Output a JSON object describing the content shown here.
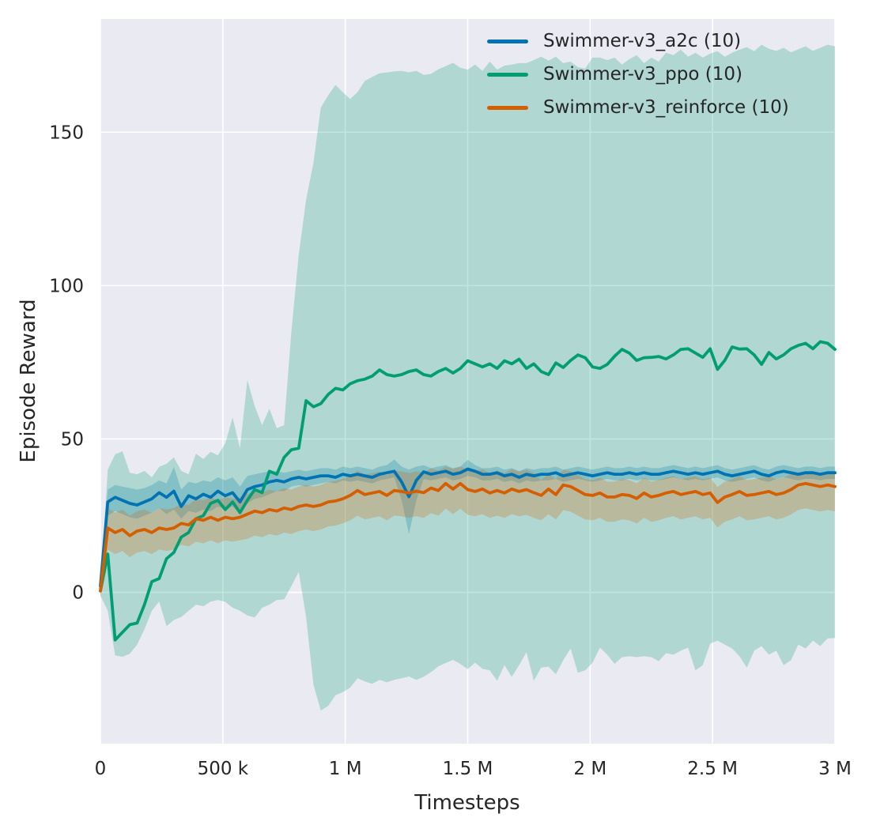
{
  "chart_data": {
    "type": "line",
    "title": "",
    "xlabel": "Timesteps",
    "ylabel": "Episode Reward",
    "xlim": [
      0,
      3000000
    ],
    "ylim": [
      -49.3,
      186.9
    ],
    "grid": true,
    "legend_position": "upper-right-inside",
    "background": "#eaeaf2",
    "grid_color": "#ffffff",
    "text_color": "#262626",
    "band_alpha": 0.25,
    "x_ticks": [
      {
        "v": 0,
        "label": "0"
      },
      {
        "v": 500000,
        "label": "500 k"
      },
      {
        "v": 1000000,
        "label": "1 M"
      },
      {
        "v": 1500000,
        "label": "1.5 M"
      },
      {
        "v": 2000000,
        "label": "2 M"
      },
      {
        "v": 2500000,
        "label": "2.5 M"
      },
      {
        "v": 3000000,
        "label": "3 M"
      }
    ],
    "y_ticks": [
      {
        "v": 0,
        "label": "0"
      },
      {
        "v": 50,
        "label": "50"
      },
      {
        "v": 100,
        "label": "100"
      },
      {
        "v": 150,
        "label": "150"
      }
    ],
    "x": {
      "start": 0,
      "step": 30000,
      "count": 101,
      "unit": "timesteps"
    },
    "series": [
      {
        "name": "a2c",
        "label": "Swimmer-v3_a2c (10)",
        "color": "#0173b2",
        "mean": [
          2,
          29.5,
          31,
          30,
          29,
          28.5,
          29.5,
          30.5,
          32.5,
          31,
          33,
          28,
          31.5,
          30.5,
          32,
          31,
          33,
          31.5,
          32.5,
          29.5,
          33.5,
          34.5,
          35,
          36,
          36.5,
          36,
          37,
          37.5,
          37,
          37.5,
          38,
          38,
          37.5,
          38.5,
          38,
          38.5,
          38,
          37.5,
          38.5,
          39,
          39.5,
          36,
          31.2,
          36.5,
          39.3,
          38.5,
          39,
          39.5,
          38.5,
          39,
          40.2,
          39.5,
          38.5,
          38.5,
          39,
          38,
          38.5,
          37.5,
          38.5,
          38,
          38.5,
          38.5,
          39,
          38,
          38.5,
          39,
          38.5,
          38,
          38.5,
          39,
          38.5,
          38.5,
          39,
          38.5,
          39,
          38.5,
          38.5,
          39,
          39.5,
          39,
          38.5,
          39,
          38.5,
          39,
          39.5,
          38.5,
          38,
          38.5,
          39,
          39.5,
          38.5,
          38,
          39,
          39.5,
          39,
          38.5,
          39,
          39,
          38.5,
          39,
          39
        ],
        "band_low": [
          0,
          25,
          26.5,
          25.5,
          24.5,
          24,
          25,
          26,
          27.5,
          25.5,
          27,
          24,
          26.5,
          26,
          27,
          26.5,
          28,
          27,
          28,
          25.5,
          29,
          30.5,
          31,
          32,
          33,
          33,
          34.5,
          35,
          34.5,
          35,
          35.5,
          36,
          35.5,
          36.5,
          36,
          36.5,
          36,
          35.5,
          36.5,
          37,
          37.5,
          30,
          19,
          30,
          37,
          36.5,
          37,
          37.5,
          36.5,
          37,
          38,
          37.5,
          36.5,
          36.5,
          37,
          36,
          36.5,
          35.5,
          36.5,
          36,
          36.5,
          36.5,
          37,
          36,
          36.5,
          37,
          36.5,
          36,
          36.5,
          37,
          36.5,
          36.5,
          37,
          36.5,
          37,
          36.5,
          36.5,
          37,
          37.5,
          37,
          36.5,
          37,
          36.5,
          37,
          37.5,
          36.5,
          36,
          36.5,
          37,
          37.5,
          36.5,
          36,
          37,
          37.5,
          37,
          36.5,
          37,
          37,
          36.5,
          37,
          37
        ],
        "band_high": [
          4,
          33.5,
          35,
          34.5,
          34,
          33.5,
          34,
          35,
          36.5,
          35.5,
          40.9,
          33.5,
          36,
          35.5,
          36.5,
          36,
          37.5,
          36.5,
          37.5,
          34.5,
          38,
          38.5,
          39,
          39.5,
          39.5,
          39,
          39.5,
          40,
          39.5,
          40,
          40.5,
          40.5,
          40,
          41,
          40.5,
          41,
          40.5,
          40,
          41,
          41.5,
          43.3,
          41,
          40,
          41,
          41.5,
          40.5,
          41,
          41.5,
          40.5,
          41,
          43.2,
          41.5,
          40.5,
          40.5,
          41,
          40,
          40.5,
          39.5,
          40.5,
          40,
          40.5,
          40.5,
          41,
          40,
          40.5,
          41,
          40.5,
          40,
          40.5,
          41,
          40.5,
          40.5,
          41,
          40.5,
          41,
          40.5,
          40.5,
          41,
          41.5,
          41,
          40.5,
          41,
          40.5,
          41,
          41.5,
          40.5,
          40,
          40.5,
          41,
          41.5,
          40.5,
          40,
          41,
          41.5,
          41,
          40.5,
          41,
          41,
          40.5,
          41,
          41
        ]
      },
      {
        "name": "ppo",
        "label": "Swimmer-v3_ppo (10)",
        "color": "#029e73",
        "mean": [
          0.5,
          12.5,
          -15.5,
          -13,
          -10.5,
          -10,
          -4,
          3.5,
          4.5,
          11,
          13,
          18,
          19.5,
          24,
          25,
          29,
          30,
          27,
          29.5,
          26,
          30,
          33.5,
          32.5,
          39.5,
          38.5,
          44,
          46.5,
          47,
          62.5,
          60.5,
          61.5,
          64.5,
          66.5,
          66,
          68,
          69,
          69.5,
          70.5,
          72.5,
          71,
          70.5,
          71,
          72,
          72.5,
          71,
          70.5,
          72,
          73,
          71.5,
          73,
          75.5,
          74.5,
          73.5,
          74.5,
          73,
          75.5,
          74.5,
          76,
          73,
          74.5,
          72,
          71,
          74.8,
          73.3,
          75.6,
          77.4,
          76.5,
          73.5,
          73,
          74.3,
          77,
          79.2,
          78,
          75.6,
          76.5,
          76.6,
          76.9,
          76.1,
          77.4,
          79.2,
          79.4,
          78,
          76.6,
          79.4,
          72.7,
          75.6,
          80,
          79.3,
          79.4,
          77.4,
          74.3,
          78.2,
          76.1,
          77.4,
          79.4,
          80.5,
          81.2,
          79.4,
          81.7,
          81.2,
          79.2
        ],
        "band_low": [
          -1,
          -6,
          -20.5,
          -21,
          -20,
          -17,
          -12,
          -6,
          -3,
          -11,
          -9,
          -8,
          -6,
          -4,
          -4.5,
          -3,
          -2.5,
          -3.1,
          -5,
          -6,
          -7.5,
          -8.2,
          -5,
          -4,
          -2.5,
          -2.3,
          2,
          6.7,
          -8,
          -30,
          -38.5,
          -37,
          -33.5,
          -32.5,
          -31,
          -28,
          -29,
          -29.8,
          -28.5,
          -29.3,
          -28.5,
          -28,
          -27.4,
          -28.5,
          -27.5,
          -26,
          -24.1,
          -23,
          -22,
          -23.3,
          -25,
          -22.9,
          -24.9,
          -25.4,
          -28.8,
          -23.7,
          -27.5,
          -23.7,
          -19.5,
          -28.8,
          -24.5,
          -24.2,
          -26.7,
          -22.1,
          -18.3,
          -26.2,
          -25.4,
          -22.9,
          -18,
          -20.3,
          -23.3,
          -21.1,
          -20.8,
          -21.1,
          -20.8,
          -21.1,
          -22.4,
          -19.8,
          -20.3,
          -19,
          -18,
          -25.4,
          -23.7,
          -16.7,
          -15.7,
          -17,
          -18.3,
          -20.8,
          -24.5,
          -19,
          -17.5,
          -20.3,
          -19,
          -23.7,
          -22.1,
          -17,
          -18.3,
          -15.7,
          -17.5,
          -15,
          -14.9
        ],
        "band_high": [
          2,
          40,
          45,
          46,
          39,
          38.5,
          39.6,
          37.5,
          40.9,
          41.9,
          44,
          39.6,
          38.5,
          45.2,
          43.5,
          45.8,
          44.7,
          48.6,
          57,
          47,
          69.2,
          60.7,
          54.5,
          59.9,
          53.5,
          54.5,
          85,
          110,
          128,
          140,
          158,
          162,
          165.4,
          163,
          160.8,
          163,
          166.7,
          168,
          169.2,
          169.5,
          169.8,
          170,
          169.5,
          170,
          168.7,
          169,
          170.5,
          171.5,
          172.6,
          171,
          170.4,
          172,
          170,
          173,
          170.4,
          171.7,
          172,
          172.5,
          172.5,
          173.5,
          174.6,
          173.3,
          174.6,
          172.5,
          173,
          171.2,
          170.7,
          174.3,
          174.3,
          173.5,
          174.3,
          172,
          173.8,
          175.1,
          172.5,
          174.3,
          173,
          175.9,
          175.1,
          176.9,
          174.6,
          175.9,
          174.3,
          175.6,
          176.4,
          174.6,
          175.9,
          176.9,
          177.7,
          176.4,
          178.5,
          177.2,
          176.5,
          177.5,
          176,
          177,
          178,
          176.5,
          177.5,
          178.5,
          178
        ]
      },
      {
        "name": "reinforce",
        "label": "Swimmer-v3_reinforce (10)",
        "color": "#d55e00",
        "mean": [
          0.5,
          21,
          19.5,
          20.5,
          18.5,
          20,
          20.5,
          19.5,
          21,
          20.5,
          21,
          22.5,
          22,
          24,
          23.5,
          24.5,
          23.5,
          24.5,
          24,
          24.5,
          25.5,
          26.5,
          26,
          27,
          26.5,
          27.5,
          27,
          28,
          28.5,
          28,
          28.5,
          29.5,
          29.8,
          30.5,
          31.6,
          33.2,
          31.9,
          32.4,
          32.9,
          31.6,
          33.2,
          32.9,
          32.4,
          33,
          32.5,
          34,
          33.2,
          35.5,
          33.7,
          35.5,
          33.5,
          32.9,
          33.7,
          32.4,
          33.2,
          32.4,
          33.7,
          32.9,
          33.5,
          32.5,
          31.6,
          33.7,
          31.9,
          35,
          34.5,
          33.2,
          31.9,
          31.6,
          32.4,
          31.1,
          31.1,
          31.9,
          31.6,
          30.6,
          32.4,
          31.1,
          31.6,
          32.4,
          32.9,
          31.9,
          32.4,
          32.9,
          31.9,
          32.4,
          29.3,
          31.1,
          31.9,
          32.9,
          31.6,
          31.9,
          32.4,
          32.9,
          31.9,
          32.4,
          33.5,
          35,
          35.5,
          35,
          34.5,
          35,
          34.5
        ],
        "band_low": [
          -2,
          14,
          12.5,
          13.5,
          11.5,
          13,
          13.5,
          12.5,
          14,
          13.5,
          14,
          15.5,
          15,
          16.5,
          16,
          17,
          16,
          17,
          16.5,
          17,
          17.5,
          18.5,
          18,
          19,
          18.5,
          19.5,
          19,
          20,
          20.5,
          20,
          20.5,
          21.5,
          21.8,
          22.5,
          23.5,
          25,
          23.8,
          24.3,
          24.8,
          23.5,
          25,
          24.8,
          24.3,
          24.8,
          24.3,
          25.8,
          25,
          27.3,
          25.5,
          27.3,
          25.3,
          24.8,
          25.5,
          24.3,
          25,
          24.3,
          25.5,
          24.8,
          25.3,
          24.3,
          23.5,
          25.5,
          23.8,
          26.8,
          26.3,
          25,
          23.8,
          23.5,
          24.3,
          23,
          23,
          23.8,
          23.5,
          22.5,
          24.3,
          23,
          23.5,
          24.3,
          24.8,
          23.8,
          24.3,
          24.8,
          23.8,
          24.3,
          21.2,
          23,
          23.8,
          24.8,
          23.5,
          23.8,
          24.3,
          24.8,
          23.8,
          24.3,
          25.4,
          26.9,
          27.4,
          26.9,
          26.4,
          26.9,
          26.4
        ],
        "band_high": [
          3,
          27.5,
          26,
          27,
          25,
          26.5,
          27,
          26,
          27.5,
          27,
          27.5,
          29,
          28.5,
          30.5,
          30,
          31,
          30,
          31,
          30.5,
          31,
          32,
          33,
          32.5,
          33.5,
          33,
          34,
          33.5,
          34.5,
          35,
          34.5,
          35,
          36,
          36.3,
          37,
          38.1,
          39.7,
          38.4,
          38.9,
          39.4,
          38.1,
          39.7,
          39.4,
          38.9,
          39.5,
          39,
          40.5,
          39.7,
          41,
          40.2,
          41,
          40,
          39.4,
          40.2,
          38.9,
          39.7,
          38.9,
          40.2,
          39.4,
          40,
          39,
          36.6,
          38.7,
          36.9,
          40,
          39.5,
          38.2,
          36.9,
          36.6,
          37.4,
          36.1,
          36.1,
          36.9,
          36.6,
          35.6,
          37.4,
          36.1,
          36.6,
          37.4,
          37.9,
          36.9,
          37.4,
          37.9,
          36.9,
          37.4,
          34.3,
          36.1,
          36.9,
          37.9,
          36.6,
          36.9,
          37.4,
          37.9,
          36.9,
          37.4,
          38.5,
          39,
          39.5,
          39,
          38.5,
          39,
          38.5
        ]
      }
    ]
  }
}
